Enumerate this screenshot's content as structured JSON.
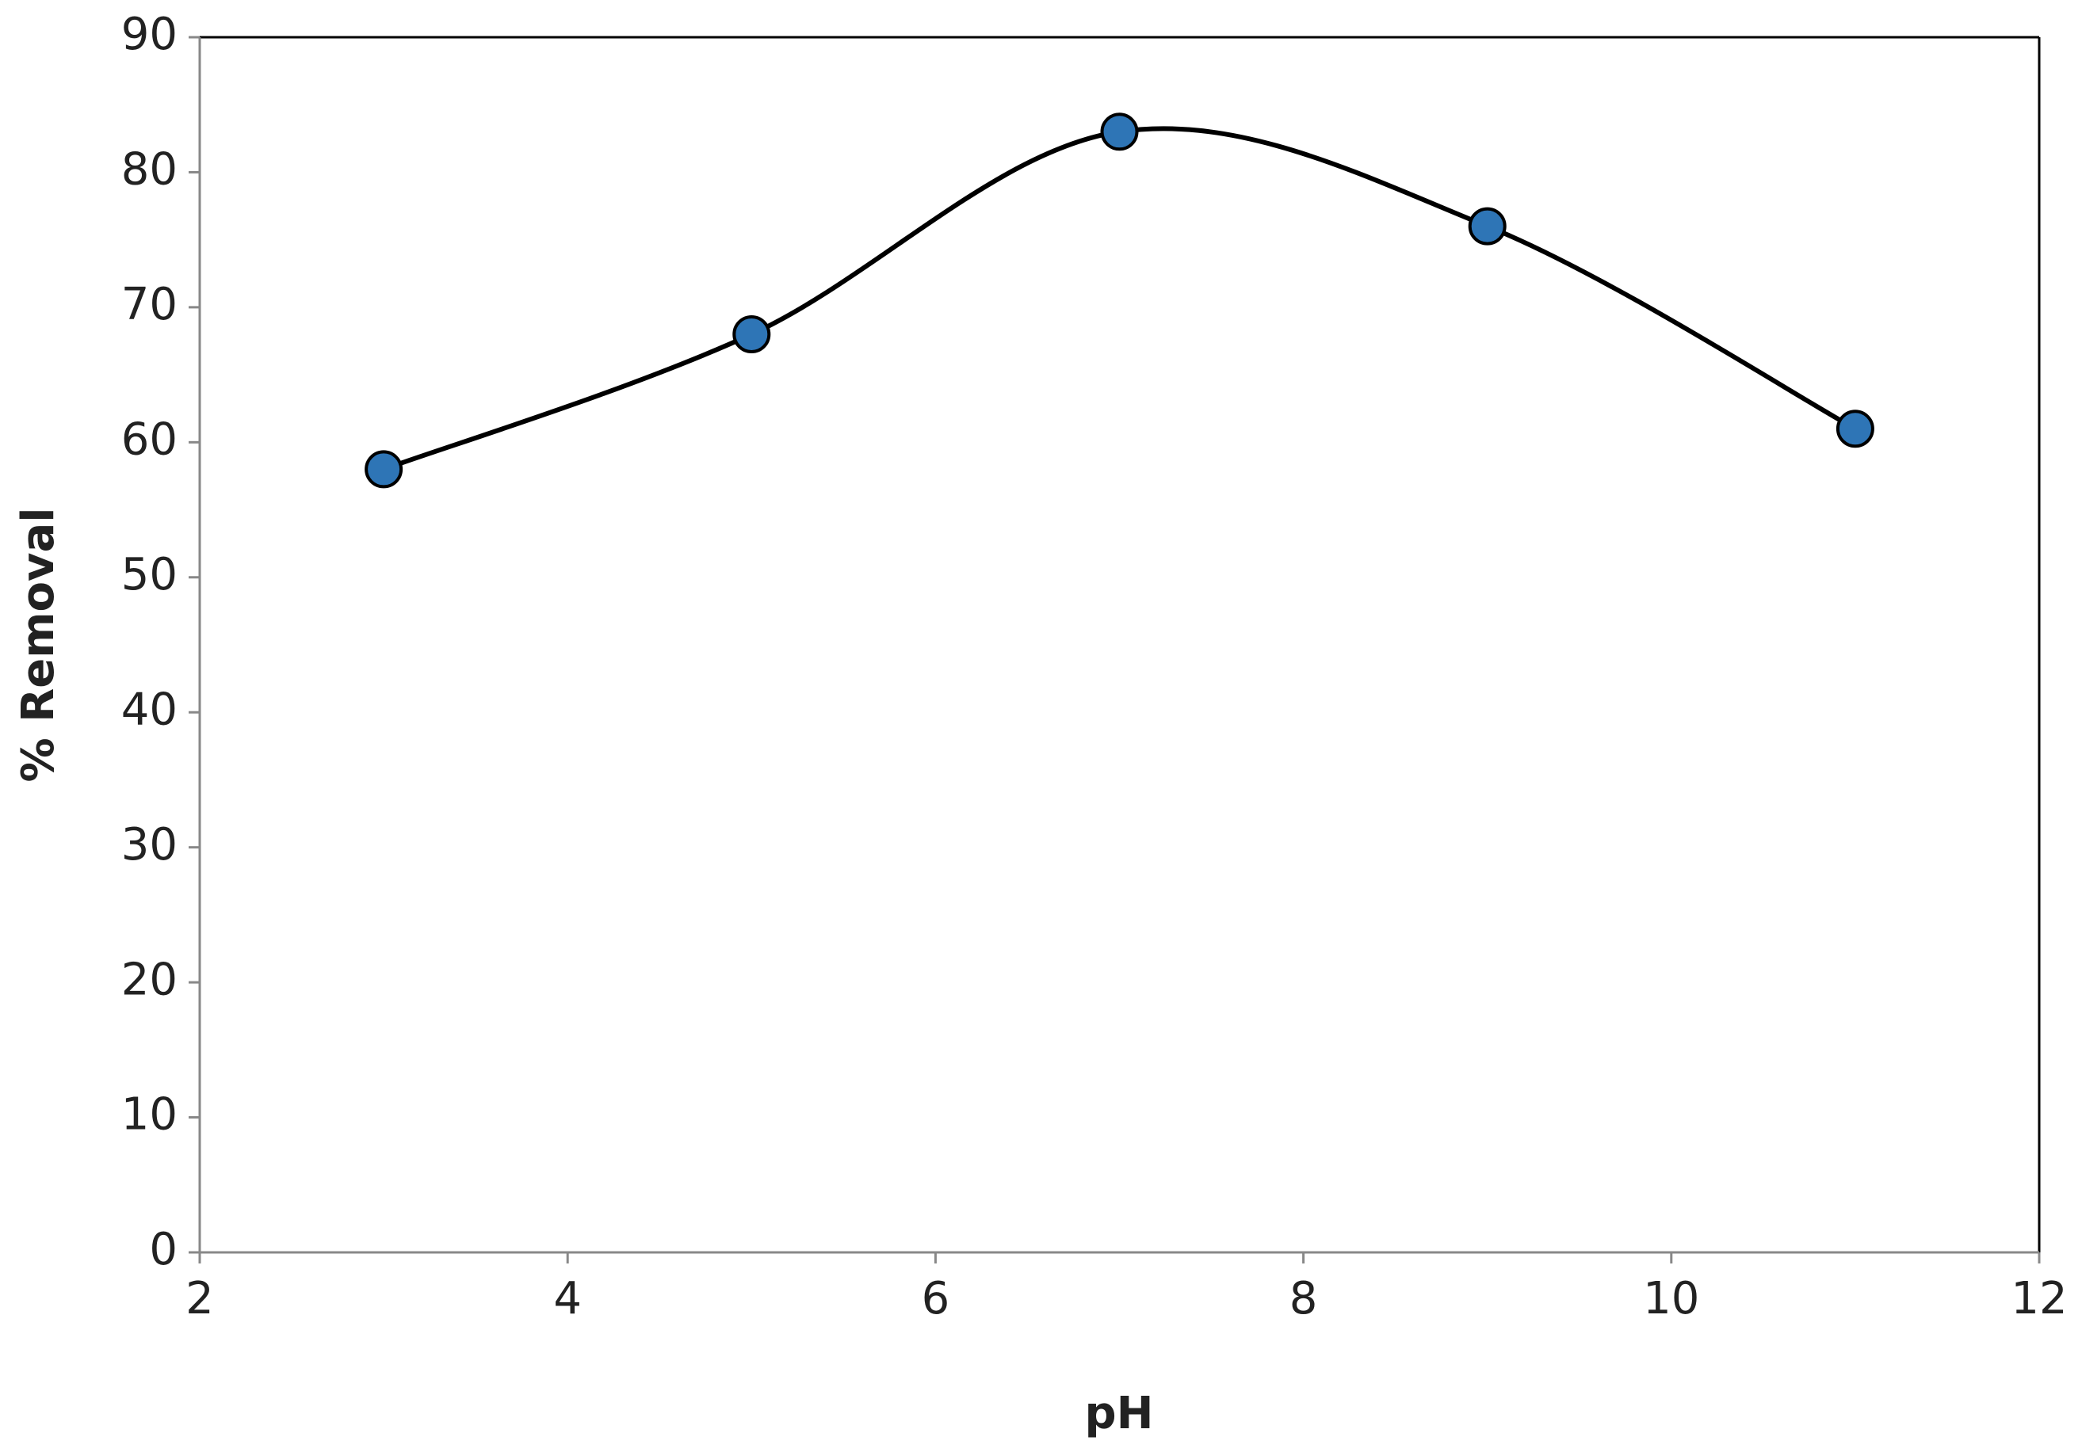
{
  "chart_data": {
    "type": "line",
    "x_label": "pH",
    "y_label": "% Removal",
    "x": [
      3,
      5,
      7,
      9,
      11
    ],
    "series": [
      {
        "name": "% Removal",
        "color": "#2e75b6",
        "values": [
          58,
          68,
          83,
          76,
          61
        ]
      }
    ],
    "xlim": [
      2,
      12
    ],
    "xticks": [
      2,
      4,
      6,
      8,
      10,
      12
    ],
    "ylim": [
      0,
      90
    ],
    "yticks": [
      0,
      10,
      20,
      30,
      40,
      50,
      60,
      70,
      80,
      90
    ],
    "grid": false,
    "smooth": true
  }
}
